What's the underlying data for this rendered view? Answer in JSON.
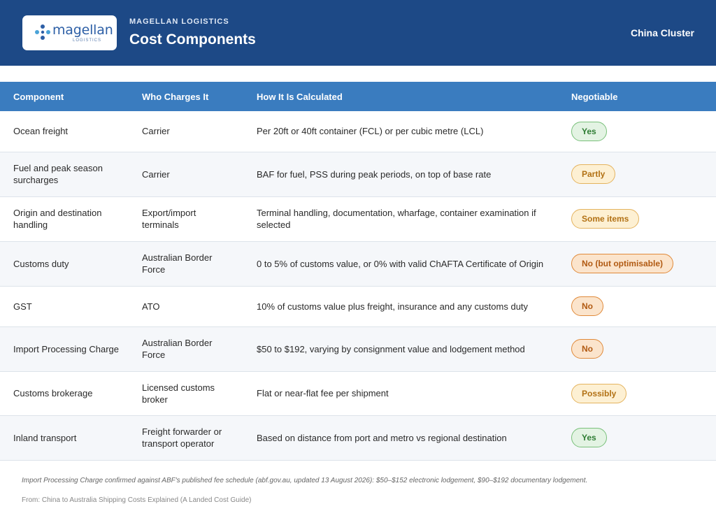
{
  "header": {
    "logo_text": "magellan",
    "logo_sub": "LOGISTICS",
    "company": "MAGELLAN LOGISTICS",
    "title": "Cost Components",
    "cluster": "China Cluster"
  },
  "table": {
    "headers": [
      "Component",
      "Who Charges It",
      "How It Is Calculated",
      "Negotiable"
    ],
    "rows": [
      {
        "component": "Ocean freight",
        "who": "Carrier",
        "how": "Per 20ft or 40ft container (FCL) or per cubic metre (LCL)",
        "negotiable": "Yes",
        "status": "green"
      },
      {
        "component": "Fuel and peak season surcharges",
        "who": "Carrier",
        "how": "BAF for fuel, PSS during peak periods, on top of base rate",
        "negotiable": "Partly",
        "status": "amber"
      },
      {
        "component": "Origin and destination handling",
        "who": "Export/import terminals",
        "how": "Terminal handling, documentation, wharfage, container examination if selected",
        "negotiable": "Some items",
        "status": "amber"
      },
      {
        "component": "Customs duty",
        "who": "Australian Border Force",
        "how": "0 to 5% of customs value, or 0% with valid ChAFTA Certificate of Origin",
        "negotiable": "No (but optimisable)",
        "status": "orange"
      },
      {
        "component": "GST",
        "who": "ATO",
        "how": "10% of customs value plus freight, insurance and any customs duty",
        "negotiable": "No",
        "status": "orange"
      },
      {
        "component": "Import Processing Charge",
        "who": "Australian Border Force",
        "how": "$50 to $192, varying by consignment value and lodgement method",
        "negotiable": "No",
        "status": "orange"
      },
      {
        "component": "Customs brokerage",
        "who": "Licensed customs broker",
        "how": "Flat or near-flat fee per shipment",
        "negotiable": "Possibly",
        "status": "amber"
      },
      {
        "component": "Inland transport",
        "who": "Freight forwarder or transport operator",
        "how": "Based on distance from port and metro vs regional destination",
        "negotiable": "Yes",
        "status": "green"
      }
    ]
  },
  "footer": {
    "note": "Import Processing Charge confirmed against ABF's published fee schedule (abf.gov.au, updated 13 August 2026): $50–$152 electronic lodgement, $90–$192 documentary lodgement.",
    "source": "From: China to Australia Shipping Costs Explained (A Landed Cost Guide)"
  },
  "colors": {
    "header_bg": "#1d4986",
    "table_header_bg": "#3a7cbf",
    "badge_green": "#79c07a",
    "badge_amber": "#e4b35e",
    "badge_orange": "#e08a3a"
  }
}
